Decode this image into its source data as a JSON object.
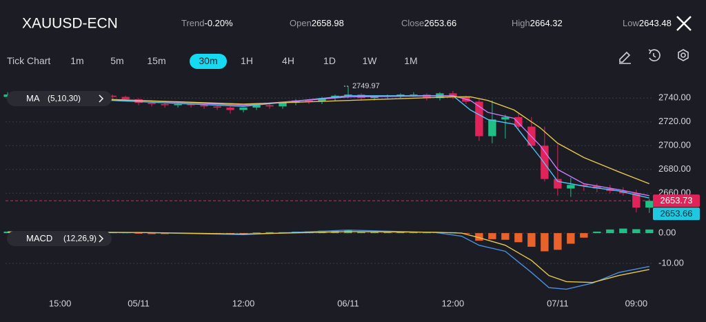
{
  "header": {
    "symbol": "XAUUSD-ECN",
    "trend_label": "Trend",
    "trend": "-0.20%",
    "open_label": "Open",
    "open": "2658.98",
    "close_label": "Close",
    "close": "2653.66",
    "high_label": "High",
    "high": "2664.32",
    "low_label": "Low",
    "low": "2643.48"
  },
  "timeframes": {
    "items": [
      "Tick Chart",
      "1m",
      "5m",
      "15m",
      "30m",
      "1H",
      "4H",
      "1D",
      "1W",
      "1M"
    ],
    "active": 4
  },
  "chart_data": [
    {
      "type": "candlestick",
      "indicator": {
        "name": "MA",
        "params": "(5,10,30)"
      },
      "x": [
        -6,
        -4.5,
        -3,
        -1.5,
        0,
        1.5,
        3,
        4.5,
        6,
        7.5,
        9,
        10.5,
        12,
        13.5,
        15,
        16.5,
        18,
        19.5,
        21,
        22.5,
        24,
        25.5,
        27,
        28.5,
        30,
        31.5,
        33,
        34.5,
        36,
        37.5,
        39,
        40.5,
        42,
        43.5,
        45,
        46.5,
        48,
        49.5,
        51,
        52.5,
        54,
        55.5,
        57,
        58.5,
        60,
        61.5,
        63,
        64.5,
        66,
        67.5
      ],
      "open": [
        2741,
        2743,
        2742,
        2744,
        2743,
        2742,
        2741,
        2743,
        2742,
        2741,
        2739,
        2736,
        2735,
        2734,
        2735,
        2734,
        2733,
        2732,
        2730,
        2732,
        2734,
        2733,
        2736,
        2738,
        2737,
        2740,
        2742,
        2743,
        2740,
        2741,
        2742,
        2743,
        2743,
        2740,
        2744,
        2741,
        2737,
        2708,
        2722,
        2724,
        2716,
        2700,
        2672,
        2664,
        2667,
        2666,
        2664,
        2662,
        2660,
        2648
      ],
      "high": [
        2745,
        2744,
        2746,
        2745,
        2744,
        2743,
        2744,
        2744,
        2743,
        2742,
        2740,
        2737,
        2736,
        2736,
        2736,
        2735,
        2734,
        2733,
        2732,
        2735,
        2735,
        2737,
        2739,
        2739,
        2741,
        2743,
        2749.97,
        2744,
        2742,
        2743,
        2744,
        2745,
        2744,
        2745,
        2746,
        2742,
        2739,
        2738,
        2726,
        2727,
        2724,
        2716,
        2701,
        2673,
        2668,
        2668,
        2667,
        2665,
        2663,
        2655
      ],
      "low": [
        2739,
        2740,
        2741,
        2741,
        2740,
        2739,
        2740,
        2740,
        2739,
        2738,
        2734,
        2733,
        2732,
        2732,
        2732,
        2731,
        2730,
        2727,
        2728,
        2730,
        2731,
        2731,
        2734,
        2735,
        2735,
        2738,
        2740,
        2738,
        2738,
        2739,
        2740,
        2741,
        2738,
        2738,
        2739,
        2735,
        2704,
        2702,
        2706,
        2714,
        2698,
        2670,
        2658,
        2657,
        2662,
        2661,
        2660,
        2658,
        2644,
        2643.48
      ],
      "close": [
        2743,
        2742,
        2744,
        2743,
        2742,
        2741,
        2743,
        2742,
        2741,
        2739,
        2736,
        2735,
        2734,
        2735,
        2734,
        2733,
        2732,
        2730,
        2732,
        2734,
        2733,
        2736,
        2738,
        2737,
        2740,
        2742,
        2743,
        2740,
        2741,
        2742,
        2743,
        2743,
        2740,
        2744,
        2741,
        2737,
        2708,
        2722,
        2724,
        2716,
        2700,
        2672,
        2664,
        2667,
        2666,
        2664,
        2662,
        2660,
        2648,
        2653.66
      ],
      "max_index": 26,
      "up_color": "#1fbf86",
      "down_color": "#e0245a",
      "series": [
        {
          "color": "#4fc3f7",
          "x": [
            -6,
            9,
            21,
            33,
            45,
            47,
            49,
            52,
            55,
            57,
            60,
            64,
            67.5
          ],
          "values": [
            2742,
            2737,
            2733,
            2742,
            2742,
            2730,
            2722,
            2718,
            2690,
            2670,
            2666,
            2662,
            2656
          ]
        },
        {
          "color": "#c77dff",
          "x": [
            -6,
            9,
            21,
            33,
            45,
            47,
            49,
            52,
            55,
            57,
            60,
            64,
            67.5
          ],
          "values": [
            2742,
            2738,
            2734,
            2741,
            2742,
            2738,
            2728,
            2723,
            2700,
            2680,
            2668,
            2663,
            2658
          ]
        },
        {
          "color": "#e6c84f",
          "x": [
            -6,
            9,
            21,
            33,
            45,
            47,
            49,
            52,
            55,
            57,
            60,
            64,
            67.5
          ],
          "values": [
            2741,
            2738,
            2735,
            2738,
            2741,
            2741,
            2738,
            2730,
            2715,
            2702,
            2690,
            2678,
            2668
          ]
        }
      ],
      "xlim": [
        -6.25,
        67.75
      ],
      "ylim": [
        2637,
        2750
      ],
      "yticks": [
        {
          "value": 2740,
          "label": "2740.00"
        },
        {
          "value": 2720,
          "label": "2720.00"
        },
        {
          "value": 2700,
          "label": "2700.00"
        },
        {
          "value": 2680,
          "label": "2680.00"
        },
        {
          "value": 2660,
          "label": "2660.00"
        }
      ],
      "grid": true,
      "price_lines": [
        {
          "value": 2653.73,
          "label": "2653.73",
          "color": "#e0245a"
        },
        {
          "value": 2653.66,
          "label": "2653.66",
          "color": "#1ec8e0"
        }
      ]
    },
    {
      "type": "macd",
      "indicator": {
        "name": "MACD",
        "params": "(12,26,9)"
      },
      "x": [
        -6,
        -4.5,
        -3,
        -1.5,
        0,
        1.5,
        3,
        4.5,
        6,
        7.5,
        9,
        10.5,
        12,
        13.5,
        15,
        16.5,
        18,
        19.5,
        21,
        22.5,
        24,
        25.5,
        27,
        28.5,
        30,
        31.5,
        33,
        34.5,
        36,
        37.5,
        39,
        40.5,
        42,
        43.5,
        45,
        46.5,
        48,
        49.5,
        51,
        52.5,
        54,
        55.5,
        57,
        58.5,
        60,
        61.5,
        63,
        64.5,
        66,
        67.5
      ],
      "values": [
        0.5,
        0.4,
        0.3,
        0.4,
        0.3,
        0.2,
        0.3,
        0.2,
        0.2,
        0.1,
        -0.2,
        -0.3,
        -0.3,
        -0.2,
        -0.2,
        -0.2,
        -0.3,
        -0.4,
        -0.3,
        0.2,
        0.3,
        0.3,
        0.5,
        0.6,
        0.8,
        0.9,
        1.0,
        0.6,
        0.4,
        0.3,
        0.3,
        0.2,
        0.1,
        0.2,
        0.3,
        -0.2,
        -2.5,
        -2.0,
        -2.2,
        -3.0,
        -4.5,
        -6.0,
        -5.5,
        -3.5,
        -1.5,
        0.5,
        1.2,
        1.5,
        1.3,
        1.2
      ],
      "up_color": "#1fbf86",
      "down_color": "#e8622a",
      "series": [
        {
          "color": "#4a90e2",
          "x": [
            -6,
            9,
            21,
            33,
            43,
            46,
            48,
            51,
            54,
            56,
            58,
            61,
            64,
            67.5
          ],
          "values": [
            0.5,
            0.2,
            -0.5,
            1.0,
            0.2,
            -1,
            -4,
            -6,
            -13,
            -18,
            -18.5,
            -16.5,
            -13,
            -11
          ]
        },
        {
          "color": "#e6c84f",
          "x": [
            -6,
            9,
            21,
            33,
            43,
            46,
            48,
            51,
            54,
            56,
            58,
            61,
            64,
            67.5
          ],
          "values": [
            0.3,
            0.2,
            -0.3,
            0.5,
            0.3,
            0,
            -1.5,
            -4,
            -9,
            -14,
            -16,
            -16.3,
            -14,
            -12
          ]
        }
      ],
      "xlim": [
        -6.25,
        67.75
      ],
      "xticks": [
        {
          "value": 0,
          "label": "15:00"
        },
        {
          "value": 9,
          "label": "05/11"
        },
        {
          "value": 21,
          "label": "12:00"
        },
        {
          "value": 33,
          "label": "06/11"
        },
        {
          "value": 45,
          "label": "12:00"
        },
        {
          "value": 57,
          "label": "07/11"
        },
        {
          "value": 66,
          "label": "09:00"
        }
      ],
      "ylim": [
        -20,
        2.3
      ],
      "yticks": [
        {
          "value": 0,
          "label": "0.00"
        },
        {
          "value": -10,
          "label": "-10.00"
        }
      ],
      "grid": true
    }
  ]
}
